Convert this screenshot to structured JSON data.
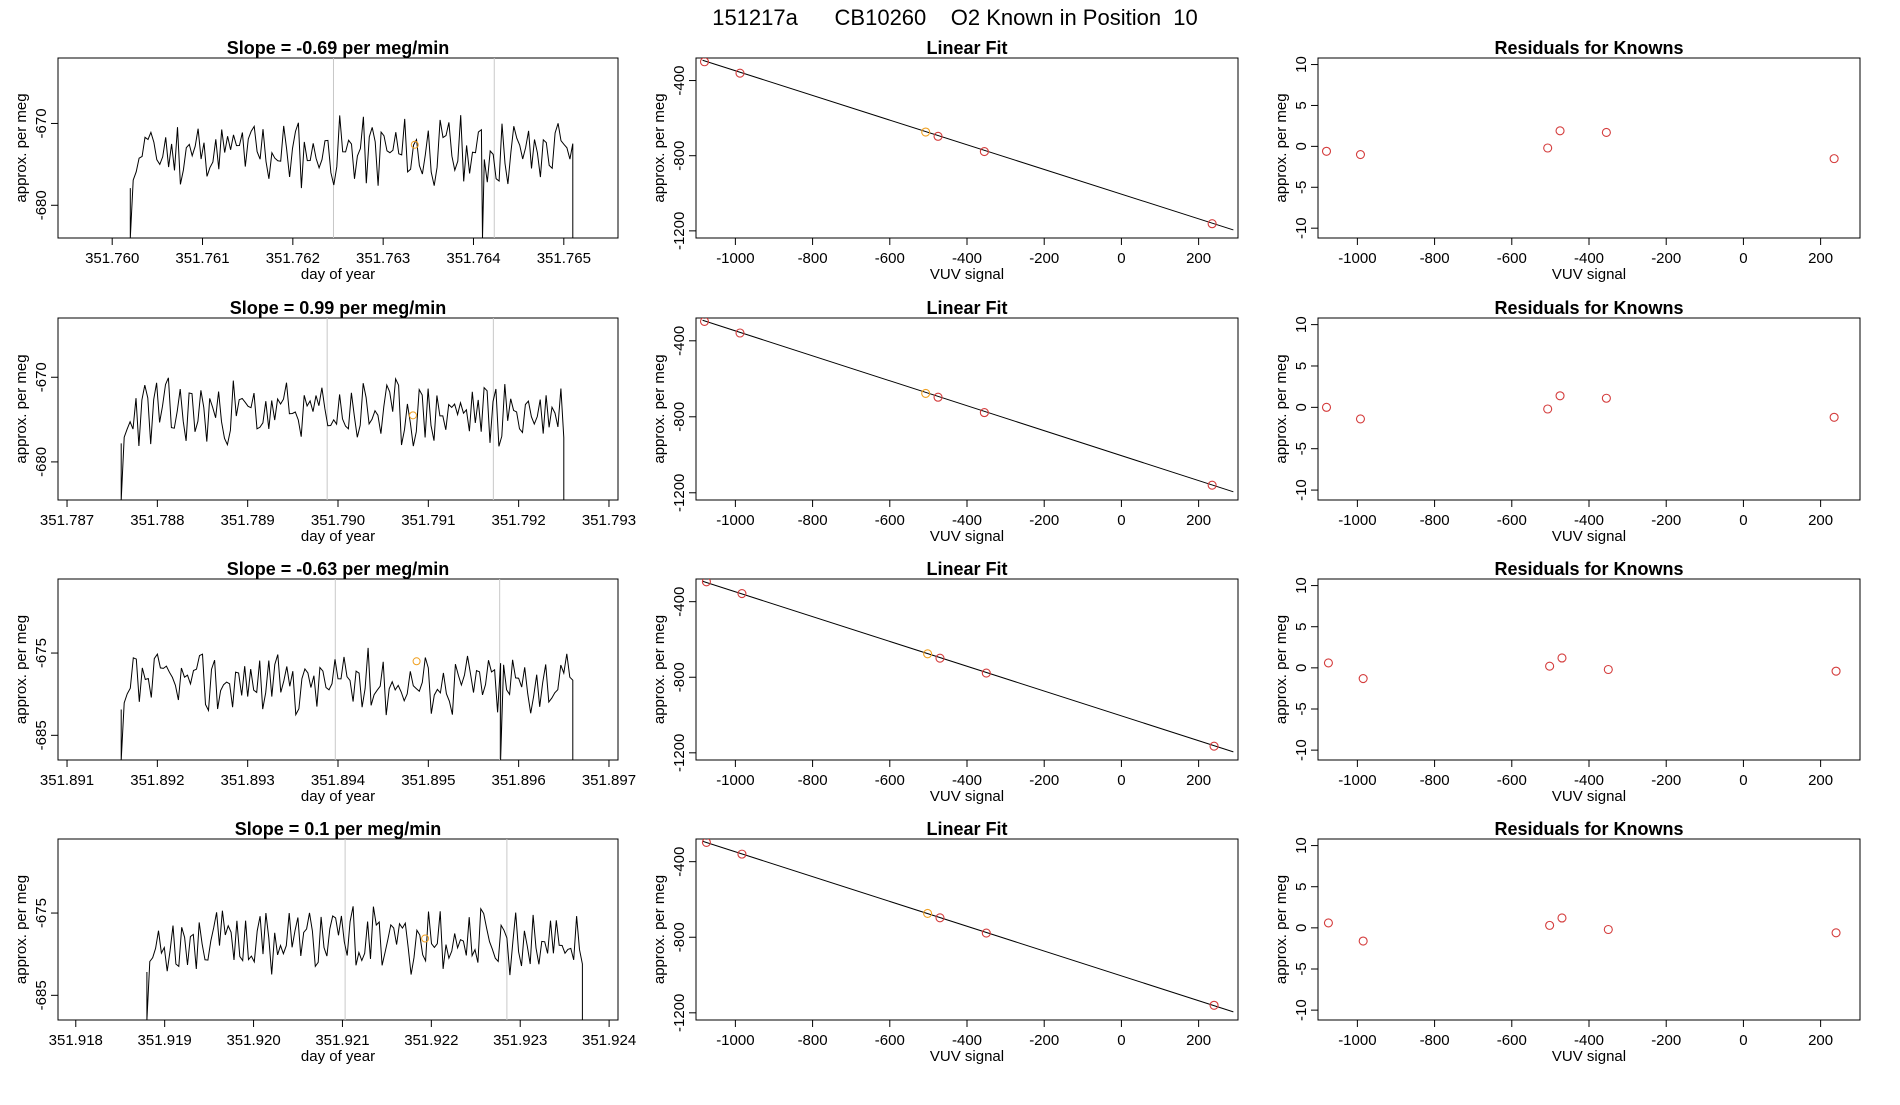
{
  "page": {
    "title": "151217a      CB10260    O2 Known in Position  10"
  },
  "colors": {
    "red": "#d43c3c",
    "orange": "#f0a020",
    "line": "#000000",
    "vline": "#c8c8c8"
  },
  "chart_data": [
    {
      "type": "line",
      "title": "Slope =  -0.69  per meg/min",
      "xlabel": "day of year",
      "ylabel": "approx. per meg",
      "xlim": [
        351.7594,
        351.7656
      ],
      "ylim": [
        -684,
        -662
      ],
      "xticks": [
        "351.760",
        "351.761",
        "351.762",
        "351.763",
        "351.764",
        "351.765"
      ],
      "xtick_values": [
        351.76,
        351.761,
        351.762,
        351.763,
        351.764,
        351.765
      ],
      "yticks": [
        "-670",
        "-680"
      ],
      "ytick_values": [
        -670,
        -680
      ],
      "trace": {
        "start": 351.7602,
        "end": 351.7651,
        "base": -673.5,
        "amp": 3.5,
        "seed": 11,
        "lows": [
          [
            351.7602,
            -684
          ],
          [
            351.7641,
            -684
          ],
          [
            351.7651,
            -684
          ]
        ]
      },
      "vlines": [
        351.76245,
        351.76423
      ],
      "marker": {
        "x": 351.76335,
        "y": -672.6
      }
    },
    {
      "type": "linear_fit",
      "title": "Linear Fit",
      "xlabel": "VUV signal",
      "ylabel": "approx. per meg",
      "xlim": [
        -1102,
        302
      ],
      "ylim": [
        -1238,
        -280
      ],
      "xticks": [
        "-1000",
        "-800",
        "-600",
        "-400",
        "-200",
        "0",
        "200"
      ],
      "xtick_values": [
        -1000,
        -800,
        -600,
        -400,
        -200,
        0,
        200
      ],
      "yticks": [
        "-400",
        "-800",
        "-1200"
      ],
      "ytick_values": [
        -400,
        -800,
        -1200
      ],
      "fit_line": {
        "x": [
          -1085,
          290
        ],
        "y": [
          -292,
          -1195
        ]
      },
      "points": [
        {
          "x": -1080,
          "y": -300,
          "color": "red"
        },
        {
          "x": -988,
          "y": -361,
          "color": "red"
        },
        {
          "x": -507,
          "y": -674,
          "color": "orange"
        },
        {
          "x": -475,
          "y": -697,
          "color": "red"
        },
        {
          "x": -355,
          "y": -778,
          "color": "red"
        },
        {
          "x": 235,
          "y": -1162,
          "color": "red"
        }
      ]
    },
    {
      "type": "scatter",
      "title": "Residuals for Knowns",
      "xlabel": "VUV signal",
      "ylabel": "approx. per meg",
      "xlim": [
        -1102,
        302
      ],
      "ylim": [
        -11.2,
        10.8
      ],
      "xticks": [
        "-1000",
        "-800",
        "-600",
        "-400",
        "-200",
        "0",
        "200"
      ],
      "xtick_values": [
        -1000,
        -800,
        -600,
        -400,
        -200,
        0,
        200
      ],
      "yticks": [
        "10",
        "5",
        "0",
        "-5",
        "-10"
      ],
      "ytick_values": [
        10,
        5,
        0,
        -5,
        -10
      ],
      "points": [
        {
          "x": -1080,
          "y": -0.6
        },
        {
          "x": -992,
          "y": -1.0
        },
        {
          "x": -507,
          "y": -0.2
        },
        {
          "x": -475,
          "y": 1.9
        },
        {
          "x": -355,
          "y": 1.7
        },
        {
          "x": 235,
          "y": -1.5
        }
      ]
    },
    {
      "type": "line",
      "title": "Slope =  0.99  per meg/min",
      "xlabel": "day of year",
      "ylabel": "approx. per meg",
      "xlim": [
        351.7869,
        351.7931
      ],
      "ylim": [
        -684.5,
        -663
      ],
      "xticks": [
        "351.787",
        "351.788",
        "351.789",
        "351.790",
        "351.791",
        "351.792",
        "351.793"
      ],
      "xtick_values": [
        351.787,
        351.788,
        351.789,
        351.79,
        351.791,
        351.792,
        351.793
      ],
      "yticks": [
        "-670",
        "-680"
      ],
      "ytick_values": [
        -670,
        -680
      ],
      "trace": {
        "start": 351.7876,
        "end": 351.7925,
        "base": -674.2,
        "amp": 3.3,
        "seed": 23,
        "lows": [
          [
            351.7876,
            -684.5
          ],
          [
            351.7925,
            -684.5
          ]
        ]
      },
      "vlines": [
        351.78988,
        351.79172
      ],
      "marker": {
        "x": 351.79083,
        "y": -674.5
      }
    },
    {
      "type": "linear_fit",
      "title": "Linear Fit",
      "xlabel": "VUV signal",
      "ylabel": "approx. per meg",
      "xlim": [
        -1102,
        302
      ],
      "ylim": [
        -1238,
        -280
      ],
      "xticks": [
        "-1000",
        "-800",
        "-600",
        "-400",
        "-200",
        "0",
        "200"
      ],
      "xtick_values": [
        -1000,
        -800,
        -600,
        -400,
        -200,
        0,
        200
      ],
      "yticks": [
        "-400",
        "-800",
        "-1200"
      ],
      "ytick_values": [
        -400,
        -800,
        -1200
      ],
      "fit_line": {
        "x": [
          -1085,
          290
        ],
        "y": [
          -292,
          -1195
        ]
      },
      "points": [
        {
          "x": -1080,
          "y": -298,
          "color": "red"
        },
        {
          "x": -988,
          "y": -359,
          "color": "red"
        },
        {
          "x": -507,
          "y": -677,
          "color": "orange"
        },
        {
          "x": -475,
          "y": -697,
          "color": "red"
        },
        {
          "x": -355,
          "y": -778,
          "color": "red"
        },
        {
          "x": 235,
          "y": -1160,
          "color": "red"
        }
      ]
    },
    {
      "type": "scatter",
      "title": "Residuals for Knowns",
      "xlabel": "VUV signal",
      "ylabel": "approx. per meg",
      "xlim": [
        -1102,
        302
      ],
      "ylim": [
        -11.2,
        10.8
      ],
      "xticks": [
        "-1000",
        "-800",
        "-600",
        "-400",
        "-200",
        "0",
        "200"
      ],
      "xtick_values": [
        -1000,
        -800,
        -600,
        -400,
        -200,
        0,
        200
      ],
      "yticks": [
        "10",
        "5",
        "0",
        "-5",
        "-10"
      ],
      "ytick_values": [
        10,
        5,
        0,
        -5,
        -10
      ],
      "points": [
        {
          "x": -1080,
          "y": 0.0
        },
        {
          "x": -992,
          "y": -1.4
        },
        {
          "x": -507,
          "y": -0.2
        },
        {
          "x": -475,
          "y": 1.4
        },
        {
          "x": -355,
          "y": 1.1
        },
        {
          "x": 235,
          "y": -1.2
        }
      ]
    },
    {
      "type": "line",
      "title": "Slope =  -0.63  per meg/min",
      "xlabel": "day of year",
      "ylabel": "approx. per meg",
      "xlim": [
        351.8909,
        351.8971
      ],
      "ylim": [
        -688,
        -666
      ],
      "xticks": [
        "351.891",
        "351.892",
        "351.893",
        "351.894",
        "351.895",
        "351.896",
        "351.897"
      ],
      "xtick_values": [
        351.891,
        351.892,
        351.893,
        351.894,
        351.895,
        351.896,
        351.897
      ],
      "yticks": [
        "-675",
        "-685"
      ],
      "ytick_values": [
        -675,
        -685
      ],
      "trace": {
        "start": 351.8916,
        "end": 351.8966,
        "base": -678.5,
        "amp": 3.2,
        "seed": 37,
        "lows": [
          [
            351.8916,
            -688
          ],
          [
            351.8958,
            -688
          ],
          [
            351.8966,
            -688
          ]
        ]
      },
      "vlines": [
        351.89397,
        351.89579
      ],
      "marker": {
        "x": 351.89487,
        "y": -676.0
      }
    },
    {
      "type": "linear_fit",
      "title": "Linear Fit",
      "xlabel": "VUV signal",
      "ylabel": "approx. per meg",
      "xlim": [
        -1102,
        302
      ],
      "ylim": [
        -1238,
        -280
      ],
      "xticks": [
        "-1000",
        "-800",
        "-600",
        "-400",
        "-200",
        "0",
        "200"
      ],
      "xtick_values": [
        -1000,
        -800,
        -600,
        -400,
        -200,
        0,
        200
      ],
      "yticks": [
        "-400",
        "-800",
        "-1200"
      ],
      "ytick_values": [
        -400,
        -800,
        -1200
      ],
      "fit_line": {
        "x": [
          -1085,
          290
        ],
        "y": [
          -292,
          -1195
        ]
      },
      "points": [
        {
          "x": -1075,
          "y": -295,
          "color": "red"
        },
        {
          "x": -983,
          "y": -357,
          "color": "red"
        },
        {
          "x": -502,
          "y": -676,
          "color": "orange"
        },
        {
          "x": -470,
          "y": -699,
          "color": "red"
        },
        {
          "x": -350,
          "y": -778,
          "color": "red"
        },
        {
          "x": 240,
          "y": -1165,
          "color": "red"
        }
      ]
    },
    {
      "type": "scatter",
      "title": "Residuals for Knowns",
      "xlabel": "VUV signal",
      "ylabel": "approx. per meg",
      "xlim": [
        -1102,
        302
      ],
      "ylim": [
        -11.2,
        10.8
      ],
      "xticks": [
        "-1000",
        "-800",
        "-600",
        "-400",
        "-200",
        "0",
        "200"
      ],
      "xtick_values": [
        -1000,
        -800,
        -600,
        -400,
        -200,
        0,
        200
      ],
      "yticks": [
        "10",
        "5",
        "0",
        "-5",
        "-10"
      ],
      "ytick_values": [
        10,
        5,
        0,
        -5,
        -10
      ],
      "points": [
        {
          "x": -1075,
          "y": 0.6
        },
        {
          "x": -985,
          "y": -1.3
        },
        {
          "x": -502,
          "y": 0.2
        },
        {
          "x": -470,
          "y": 1.2
        },
        {
          "x": -350,
          "y": -0.2
        },
        {
          "x": 240,
          "y": -0.4
        }
      ]
    },
    {
      "type": "line",
      "title": "Slope =  0.1  per meg/min",
      "xlabel": "day of year",
      "ylabel": "approx. per meg",
      "xlim": [
        351.9178,
        351.9241
      ],
      "ylim": [
        -688,
        -666
      ],
      "xticks": [
        "351.918",
        "351.919",
        "351.920",
        "351.921",
        "351.922",
        "351.923",
        "351.924"
      ],
      "xtick_values": [
        351.918,
        351.919,
        351.92,
        351.921,
        351.922,
        351.923,
        351.924
      ],
      "yticks": [
        "-675",
        "-685"
      ],
      "ytick_values": [
        -675,
        -685
      ],
      "trace": {
        "start": 351.9188,
        "end": 351.9237,
        "base": -678.3,
        "amp": 3.4,
        "seed": 53,
        "lows": [
          [
            351.9188,
            -688
          ],
          [
            351.9237,
            -688
          ]
        ]
      },
      "vlines": [
        351.92103,
        351.92285
      ],
      "marker": {
        "x": 351.92193,
        "y": -678.1
      }
    },
    {
      "type": "linear_fit",
      "title": "Linear Fit",
      "xlabel": "VUV signal",
      "ylabel": "approx. per meg",
      "xlim": [
        -1102,
        302
      ],
      "ylim": [
        -1238,
        -280
      ],
      "xticks": [
        "-1000",
        "-800",
        "-600",
        "-400",
        "-200",
        "0",
        "200"
      ],
      "xtick_values": [
        -1000,
        -800,
        -600,
        -400,
        -200,
        0,
        200
      ],
      "yticks": [
        "-400",
        "-800",
        "-1200"
      ],
      "ytick_values": [
        -400,
        -800,
        -1200
      ],
      "fit_line": {
        "x": [
          -1085,
          290
        ],
        "y": [
          -292,
          -1195
        ]
      },
      "points": [
        {
          "x": -1075,
          "y": -298,
          "color": "red"
        },
        {
          "x": -983,
          "y": -360,
          "color": "red"
        },
        {
          "x": -502,
          "y": -674,
          "color": "orange"
        },
        {
          "x": -470,
          "y": -697,
          "color": "red"
        },
        {
          "x": -350,
          "y": -778,
          "color": "red"
        },
        {
          "x": 240,
          "y": -1160,
          "color": "red"
        }
      ]
    },
    {
      "type": "scatter",
      "title": "Residuals for Knowns",
      "xlabel": "VUV signal",
      "ylabel": "approx. per meg",
      "xlim": [
        -1102,
        302
      ],
      "ylim": [
        -11.2,
        10.8
      ],
      "xticks": [
        "-1000",
        "-800",
        "-600",
        "-400",
        "-200",
        "0",
        "200"
      ],
      "xtick_values": [
        -1000,
        -800,
        -600,
        -400,
        -200,
        0,
        200
      ],
      "yticks": [
        "10",
        "5",
        "0",
        "-5",
        "-10"
      ],
      "ytick_values": [
        10,
        5,
        0,
        -5,
        -10
      ],
      "points": [
        {
          "x": -1075,
          "y": 0.6
        },
        {
          "x": -985,
          "y": -1.6
        },
        {
          "x": -502,
          "y": 0.3
        },
        {
          "x": -470,
          "y": 1.2
        },
        {
          "x": -350,
          "y": -0.2
        },
        {
          "x": 240,
          "y": -0.6
        }
      ]
    }
  ]
}
